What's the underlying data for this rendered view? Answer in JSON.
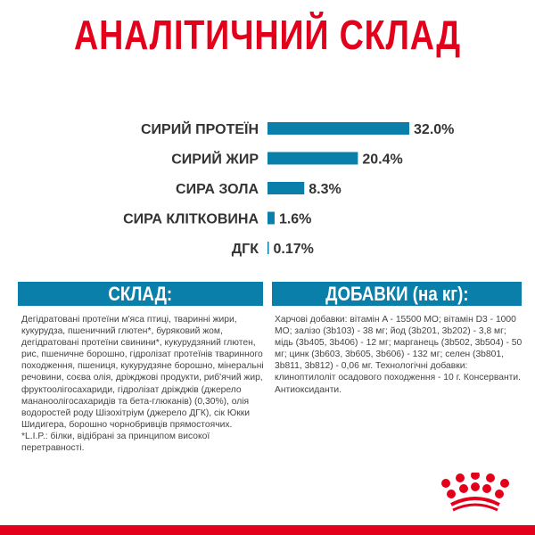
{
  "title": "АНАЛІТИЧНИЙ СКЛАД",
  "chart_data": {
    "type": "bar",
    "orientation": "horizontal",
    "categories": [
      "СИРИЙ ПРОТЕЇН",
      "СИРИЙ ЖИР",
      "СИРА ЗОЛА",
      "СИРА КЛІТКОВИНА",
      "ДГК"
    ],
    "values": [
      32.0,
      20.4,
      8.3,
      1.6,
      0.17
    ],
    "data_labels": [
      "32.0%",
      "20.4%",
      "8.3%",
      "1.6%",
      "0.17%"
    ],
    "bar_color": "#0a7fa9",
    "grid": false
  },
  "composition": {
    "header": "СКЛАД:",
    "text": "Дегідратовані протеїни м'яса птиці, тваринні жири, кукурудза, пшеничний глютен*, буряковий жом, дегідратовані протеїни свинини*, кукурудзяний глютен, рис, пшеничне борошно, гідролізат протеїнів тваринного походження, пшениця, кукурудзяне борошно, мінеральні речовини, соєва олія, дріжджові продукти, риб'ячий жир, фруктоолігосахариди, гідролізат дріжджів (джерело мананоолігосахаридів та бета-глюканів) (0,30%), олія водоростей роду Шізохітріум (джерело ДГК), сік Юкки Шидигера, борошно чорнобривців прямостоячих.",
    "note": "*L.I.P.: білки, відібрані за принципом високої перетравності."
  },
  "additives": {
    "header": "ДОБАВКИ (на кг):",
    "text": "Харчові добавки: вітамін A - 15500 МО; вітамін D3 - 1000 МО; залізо (3b103) - 38 мг; йод (3b201, 3b202) - 3,8 мг; мідь (3b405, 3b406) - 12 мг; марганець (3b502, 3b504) - 50 мг; цинк (3b603, 3b605, 3b606) - 132 мг; селен (3b801, 3b811, 3b812) - 0,06 мг. Технологічні добавки: клиноптилоліт осадового походження - 10 г. Консерванти. Антиоксиданти."
  },
  "brand": {
    "logo": "Royal Canin crown",
    "color": "#e2001a"
  }
}
